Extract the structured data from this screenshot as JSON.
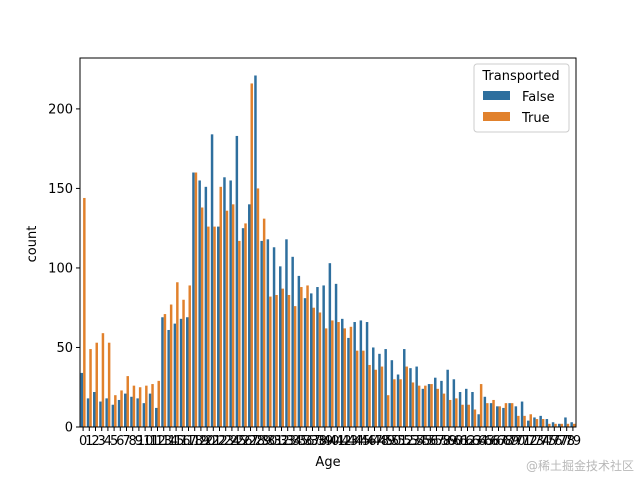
{
  "chart_data": {
    "type": "bar",
    "xlabel": "Age",
    "ylabel": "count",
    "ylim": [
      0,
      232
    ],
    "yticks": [
      0,
      50,
      100,
      150,
      200
    ],
    "categories": [
      "0",
      "1",
      "2",
      "3",
      "4",
      "5",
      "6",
      "7",
      "8",
      "9",
      "10",
      "11",
      "12",
      "13",
      "14",
      "15",
      "16",
      "17",
      "18",
      "19",
      "20",
      "21",
      "22",
      "23",
      "24",
      "25",
      "26",
      "27",
      "28",
      "29",
      "30",
      "31",
      "32",
      "33",
      "34",
      "35",
      "36",
      "37",
      "38",
      "39",
      "40",
      "41",
      "42",
      "43",
      "44",
      "45",
      "46",
      "47",
      "48",
      "49",
      "50",
      "51",
      "52",
      "53",
      "54",
      "55",
      "56",
      "57",
      "58",
      "59",
      "60",
      "61",
      "62",
      "63",
      "64",
      "65",
      "66",
      "67",
      "68",
      "69",
      "70",
      "71",
      "72",
      "73",
      "74",
      "75",
      "76",
      "77",
      "78",
      "79"
    ],
    "legend": {
      "title": "Transported",
      "location": "top-right"
    },
    "series": [
      {
        "name": "False",
        "color": "#2e6f9e",
        "values": [
          34,
          18,
          22,
          16,
          18,
          14,
          17,
          21,
          19,
          18,
          15,
          21,
          12,
          69,
          61,
          65,
          68,
          69,
          160,
          155,
          151,
          184,
          126,
          157,
          155,
          183,
          125,
          140,
          221,
          117,
          118,
          113,
          101,
          118,
          107,
          95,
          81,
          84,
          88,
          89,
          103,
          90,
          68,
          56,
          66,
          67,
          66,
          50,
          46,
          49,
          42,
          33,
          49,
          37,
          38,
          24,
          27,
          31,
          29,
          36,
          30,
          22,
          24,
          22,
          8,
          19,
          15,
          13,
          12,
          15,
          13,
          16,
          4,
          6,
          7,
          5,
          3,
          2,
          6,
          3
        ]
      },
      {
        "name": "True",
        "color": "#e1812c",
        "values": [
          144,
          49,
          53,
          59,
          53,
          20,
          23,
          32,
          26,
          25,
          26,
          27,
          29,
          71,
          77,
          91,
          80,
          89,
          160,
          138,
          126,
          126,
          151,
          136,
          140,
          117,
          128,
          216,
          150,
          131,
          82,
          83,
          87,
          83,
          76,
          88,
          89,
          75,
          72,
          62,
          67,
          66,
          62,
          63,
          48,
          48,
          39,
          36,
          38,
          20,
          30,
          30,
          38,
          28,
          26,
          26,
          27,
          24,
          21,
          17,
          18,
          14,
          14,
          11,
          27,
          15,
          17,
          13,
          15,
          15,
          7,
          7,
          8,
          5,
          5,
          2,
          2,
          2,
          2,
          2
        ]
      }
    ]
  },
  "watermark": "@稀土掘金技术社区"
}
